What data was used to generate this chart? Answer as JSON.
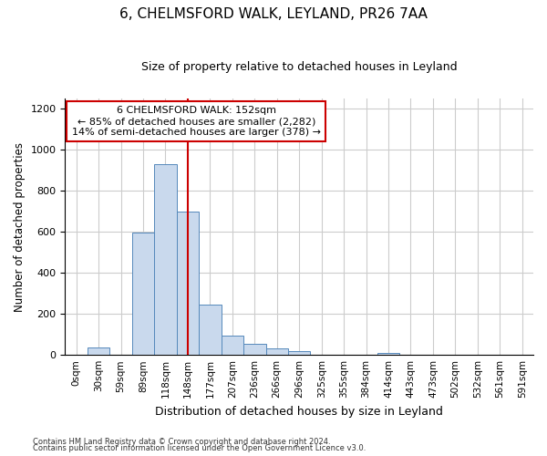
{
  "title": "6, CHELMSFORD WALK, LEYLAND, PR26 7AA",
  "subtitle": "Size of property relative to detached houses in Leyland",
  "xlabel": "Distribution of detached houses by size in Leyland",
  "ylabel": "Number of detached properties",
  "categories": [
    "0sqm",
    "30sqm",
    "59sqm",
    "89sqm",
    "118sqm",
    "148sqm",
    "177sqm",
    "207sqm",
    "236sqm",
    "266sqm",
    "296sqm",
    "325sqm",
    "355sqm",
    "384sqm",
    "414sqm",
    "443sqm",
    "473sqm",
    "502sqm",
    "532sqm",
    "561sqm",
    "591sqm"
  ],
  "values": [
    0,
    35,
    0,
    595,
    930,
    700,
    245,
    95,
    55,
    30,
    18,
    0,
    0,
    0,
    10,
    0,
    0,
    0,
    0,
    0,
    0
  ],
  "bar_color": "#c9d9ed",
  "bar_edge_color": "#5588bb",
  "vline_x": 5.0,
  "vline_color": "#cc0000",
  "annotation_text": "6 CHELMSFORD WALK: 152sqm\n← 85% of detached houses are smaller (2,282)\n14% of semi-detached houses are larger (378) →",
  "annotation_box_color": "#cc0000",
  "ylim": [
    0,
    1250
  ],
  "yticks": [
    0,
    200,
    400,
    600,
    800,
    1000,
    1200
  ],
  "footnote1": "Contains HM Land Registry data © Crown copyright and database right 2024.",
  "footnote2": "Contains public sector information licensed under the Open Government Licence v3.0.",
  "background_color": "#ffffff",
  "grid_color": "#cccccc"
}
